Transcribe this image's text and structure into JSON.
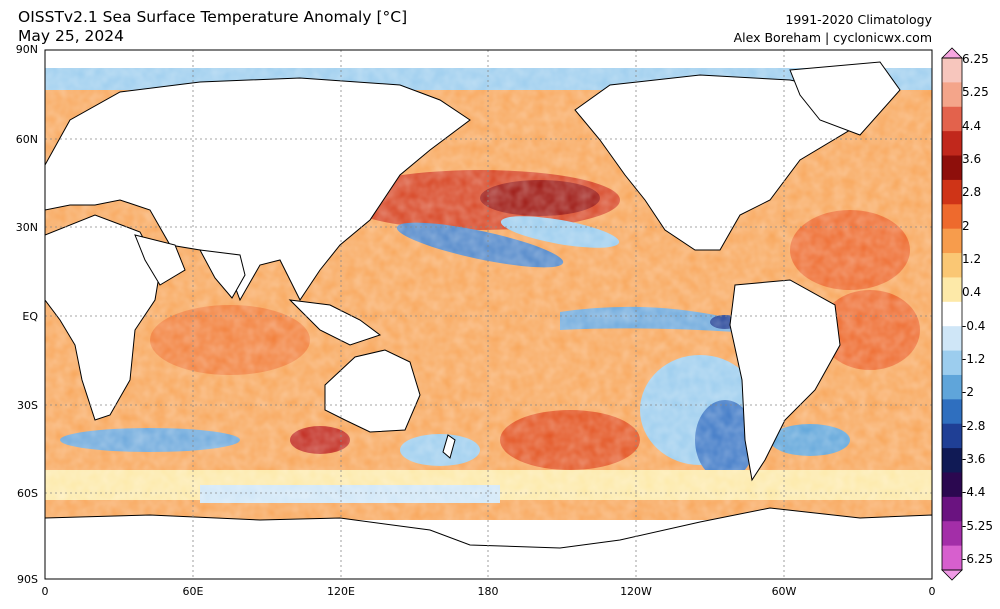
{
  "header": {
    "title_line1": "OISSTv2.1 Sea Surface Temperature Anomaly [°C]",
    "title_line2": "May 25, 2024",
    "right_line1": "1991-2020 Climatology",
    "right_line2": "Alex Boreham | cyclonicwx.com"
  },
  "axes": {
    "y_labels": [
      "90N",
      "60N",
      "30N",
      "EQ",
      "30S",
      "60S",
      "90S"
    ],
    "x_labels": [
      "0",
      "60E",
      "120E",
      "180",
      "120W",
      "60W",
      "0"
    ]
  },
  "colorbar": {
    "labels": [
      "6.25",
      "5.25",
      "4.4",
      "3.6",
      "2.8",
      "2",
      "1.2",
      "0.4",
      "-0.4",
      "-1.2",
      "-2",
      "-2.8",
      "-3.6",
      "-4.4",
      "-5.25",
      "-6.25"
    ],
    "colors": [
      "#f7a6e0",
      "#f7c6bd",
      "#f4a58a",
      "#e3624c",
      "#c1281c",
      "#8e0f0b",
      "#cf3417",
      "#ee6a2d",
      "#f79c4c",
      "#fac774",
      "#fde9a8",
      "#ffffff",
      "#cfe6f7",
      "#9ccdee",
      "#5fa5da",
      "#2f6fbf",
      "#1f3f95",
      "#101a55",
      "#2b0850",
      "#6a1380",
      "#a32ea8",
      "#d75fce",
      "#f09ae6"
    ]
  },
  "map": {
    "projection": "equirectangular",
    "central_longitude": 180,
    "land_color": "#ffffff",
    "coast_color": "#000000"
  }
}
